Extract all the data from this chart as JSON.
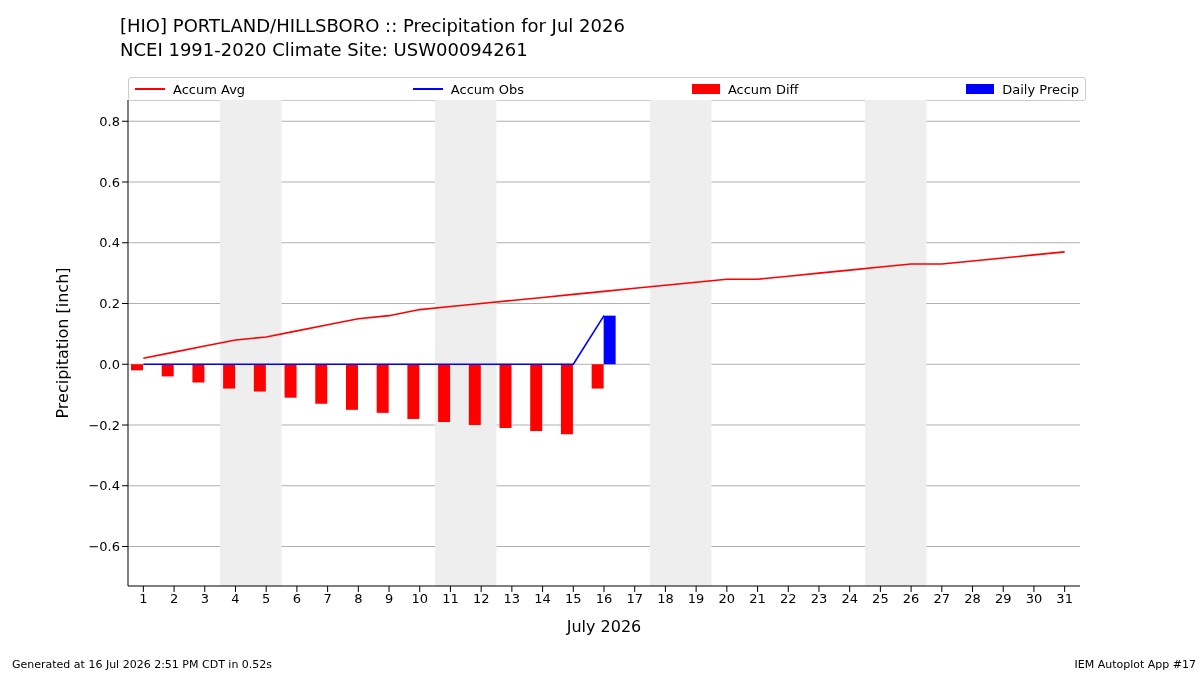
{
  "chart_data": {
    "type": "bar",
    "title": "[HIO] PORTLAND/HILLSBORO :: Precipitation for Jul 2026",
    "subtitle": "NCEI 1991-2020 Climate Site: USW00094261",
    "xlabel": "July 2026",
    "ylabel": "Precipitation [inch]",
    "x": [
      1,
      2,
      3,
      4,
      5,
      6,
      7,
      8,
      9,
      10,
      11,
      12,
      13,
      14,
      15,
      16,
      17,
      18,
      19,
      20,
      21,
      22,
      23,
      24,
      25,
      26,
      27,
      28,
      29,
      30,
      31
    ],
    "series": [
      {
        "name": "Accum Avg",
        "type": "line",
        "color": "#ff0000",
        "values": [
          0.02,
          0.04,
          0.06,
          0.08,
          0.09,
          0.11,
          0.13,
          0.15,
          0.16,
          0.18,
          0.19,
          0.2,
          0.21,
          0.22,
          0.23,
          0.24,
          0.25,
          0.26,
          0.27,
          0.28,
          0.28,
          0.29,
          0.3,
          0.31,
          0.32,
          0.33,
          0.33,
          0.34,
          0.35,
          0.36,
          0.37
        ]
      },
      {
        "name": "Accum Obs",
        "type": "line",
        "color": "#0000ff",
        "values": [
          0,
          0,
          0,
          0,
          0,
          0,
          0,
          0,
          0,
          0,
          0,
          0,
          0,
          0,
          0,
          0.16,
          null,
          null,
          null,
          null,
          null,
          null,
          null,
          null,
          null,
          null,
          null,
          null,
          null,
          null,
          null
        ]
      },
      {
        "name": "Accum Diff",
        "color": "#ff0000",
        "values": [
          -0.02,
          -0.04,
          -0.06,
          -0.08,
          -0.09,
          -0.11,
          -0.13,
          -0.15,
          -0.16,
          -0.18,
          -0.19,
          -0.2,
          -0.21,
          -0.22,
          -0.23,
          -0.08,
          null,
          null,
          null,
          null,
          null,
          null,
          null,
          null,
          null,
          null,
          null,
          null,
          null,
          null,
          null
        ]
      },
      {
        "name": "Daily Precip",
        "color": "#0000ff",
        "values": [
          0,
          0,
          0,
          0,
          0,
          0,
          0,
          0,
          0,
          0,
          0,
          0,
          0,
          0,
          0,
          0.16,
          null,
          null,
          null,
          null,
          null,
          null,
          null,
          null,
          null,
          null,
          null,
          null,
          null,
          null,
          null
        ]
      }
    ],
    "xlim": [
      0.5,
      31.5
    ],
    "xticks": [
      1,
      2,
      3,
      4,
      5,
      6,
      7,
      8,
      9,
      10,
      11,
      12,
      13,
      14,
      15,
      16,
      17,
      18,
      19,
      20,
      21,
      22,
      23,
      24,
      25,
      26,
      27,
      28,
      29,
      30,
      31
    ],
    "ylim": [
      -0.73,
      0.87
    ],
    "yticks": [
      {
        "value": -0.6,
        "label": "−0.6"
      },
      {
        "value": -0.4,
        "label": "−0.4"
      },
      {
        "value": -0.2,
        "label": "−0.2"
      },
      {
        "value": 0,
        "label": "0.0"
      },
      {
        "value": 0.2,
        "label": "0.2"
      },
      {
        "value": 0.4,
        "label": "0.4"
      },
      {
        "value": 0.6,
        "label": "0.6"
      },
      {
        "value": 0.8,
        "label": "0.8"
      }
    ],
    "bands": [
      {
        "axis": "x",
        "from": 3.5,
        "to": 5.5,
        "color": "#eeeeee"
      },
      {
        "axis": "x",
        "from": 10.5,
        "to": 12.5,
        "color": "#eeeeee"
      },
      {
        "axis": "x",
        "from": 17.5,
        "to": 19.5,
        "color": "#eeeeee"
      },
      {
        "axis": "x",
        "from": 24.5,
        "to": 26.5,
        "color": "#eeeeee"
      }
    ],
    "grid": "y",
    "legend": "top",
    "marker": "none",
    "line_style": "solid",
    "annotations": [
      "Generated at 16 Jul 2026 2:51 PM CDT in 0.52s",
      "IEM Autoplot App #17"
    ]
  }
}
